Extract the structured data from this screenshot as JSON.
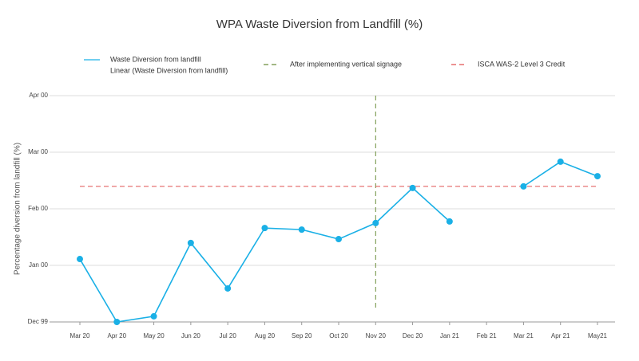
{
  "chart_data": {
    "type": "line",
    "title": "WPA Waste Diversion from Landfill (%)",
    "y_label": "Percentage diversion from landfill (%)",
    "categories": [
      "Mar 20",
      "Apr 20",
      "May 20",
      "Jun 20",
      "Jul 20",
      "Aug 20",
      "Sep 20",
      "Oct 20",
      "Nov 20",
      "Dec 20",
      "Jan 21",
      "Feb 21",
      "Mar 21",
      "Apr 21",
      "May21"
    ],
    "series": [
      {
        "name": "Waste Diversion from landfill",
        "color": "#1ab0e6",
        "values": [
          27.8,
          0,
          2.5,
          34.9,
          14.8,
          41.5,
          40.8,
          36.6,
          43.7,
          59.2,
          44.4,
          null,
          59.9,
          70.8,
          64.4
        ]
      }
    ],
    "trendline": {
      "name": "Linear (Waste Diversion from landfill)",
      "color": "#1ab0e6"
    },
    "vline": {
      "name": "After implementing vertical signage",
      "color": "#6b8e3a",
      "x": "Nov 20"
    },
    "hline": {
      "name": "ISCA WAS-2 Level 3 Credit",
      "color": "#e05050",
      "value": 59.9
    },
    "ylim": [
      0,
      100
    ],
    "yticks": [
      {
        "value": 0,
        "label": "Dec 99"
      },
      {
        "value": 25,
        "label": "Jan 00"
      },
      {
        "value": 50,
        "label": "Feb 00"
      },
      {
        "value": 75,
        "label": "Mar 00"
      },
      {
        "value": 100,
        "label": "Apr 00"
      }
    ],
    "grid": true
  }
}
